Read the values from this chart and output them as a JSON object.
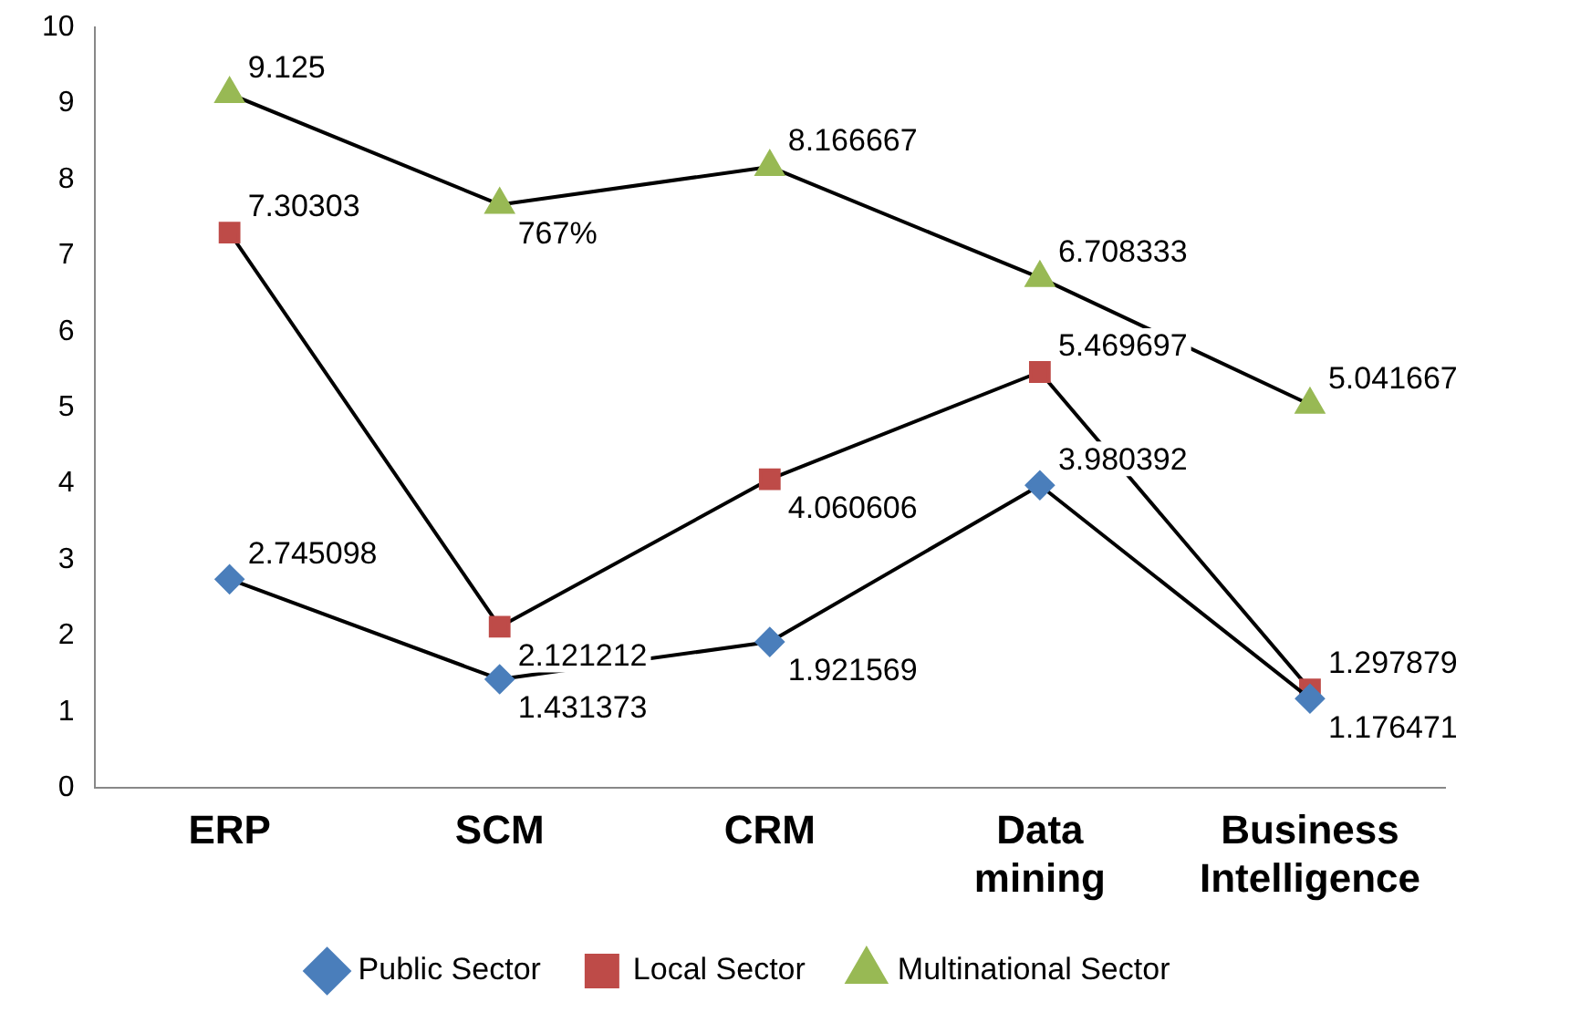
{
  "chart_data": {
    "type": "line",
    "categories": [
      "ERP",
      "SCM",
      "CRM",
      "Data mining",
      "Business Intelligence"
    ],
    "ylim": [
      0,
      10
    ],
    "yticks": [
      0,
      1,
      2,
      3,
      4,
      5,
      6,
      7,
      8,
      9,
      10
    ],
    "grid": false,
    "legend": "bottom",
    "series": [
      {
        "name": "Public Sector",
        "color": "#4a7ebb",
        "marker": "diamond",
        "values": [
          2.745098,
          1.431373,
          1.921569,
          3.980392,
          1.176471
        ],
        "value_labels": [
          "2.745098",
          "1.431373",
          "1.921569",
          "3.980392",
          "1.176471"
        ]
      },
      {
        "name": "Local Sector",
        "color": "#be4b48",
        "marker": "square",
        "values": [
          7.30303,
          2.121212,
          4.060606,
          5.469697,
          1.297879
        ],
        "value_labels": [
          "7.30303",
          "2.121212",
          "4.060606",
          "5.469697",
          "1.297879"
        ]
      },
      {
        "name": "Multinational Sector",
        "color": "#98b954",
        "marker": "triangle",
        "values": [
          9.125,
          7.67,
          8.166667,
          6.708333,
          5.041667
        ],
        "value_labels": [
          "9.125",
          "767%",
          "8.166667",
          "6.708333",
          "5.041667"
        ]
      }
    ]
  }
}
